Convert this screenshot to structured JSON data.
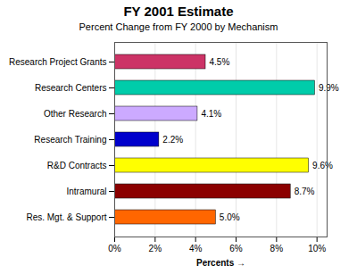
{
  "chart_data": {
    "type": "bar",
    "orientation": "horizontal",
    "title": "FY 2001 Estimate",
    "subtitle": "Percent Change from FY 2000 by Mechanism",
    "categories": [
      "Res. Mgt. & Support",
      "Intramural",
      "R&D Contracts",
      "Research Training",
      "Other Research",
      "Research Centers",
      "Research Project Grants"
    ],
    "values": [
      5.0,
      8.7,
      9.6,
      2.2,
      4.1,
      9.9,
      4.5
    ],
    "value_labels": [
      "5.0%",
      "8.7%",
      "9.6%",
      "2.2%",
      "4.1%",
      "9.9%",
      "4.5%"
    ],
    "data_labels": true,
    "colors": [
      "#FF6600",
      "#8B0000",
      "#FFFF00",
      "#0000CC",
      "#CCAAFF",
      "#00CCAA",
      "#CC3366"
    ],
    "xlabel": "Percents",
    "xlim": [
      0,
      10.5
    ],
    "xticks": [
      {
        "value": 0,
        "label": "0%"
      },
      {
        "value": 2,
        "label": "2%"
      },
      {
        "value": 4,
        "label": "4%"
      },
      {
        "value": 6,
        "label": "6%"
      },
      {
        "value": 8,
        "label": "8%"
      },
      {
        "value": 10,
        "label": "10%"
      }
    ],
    "grid": true
  }
}
